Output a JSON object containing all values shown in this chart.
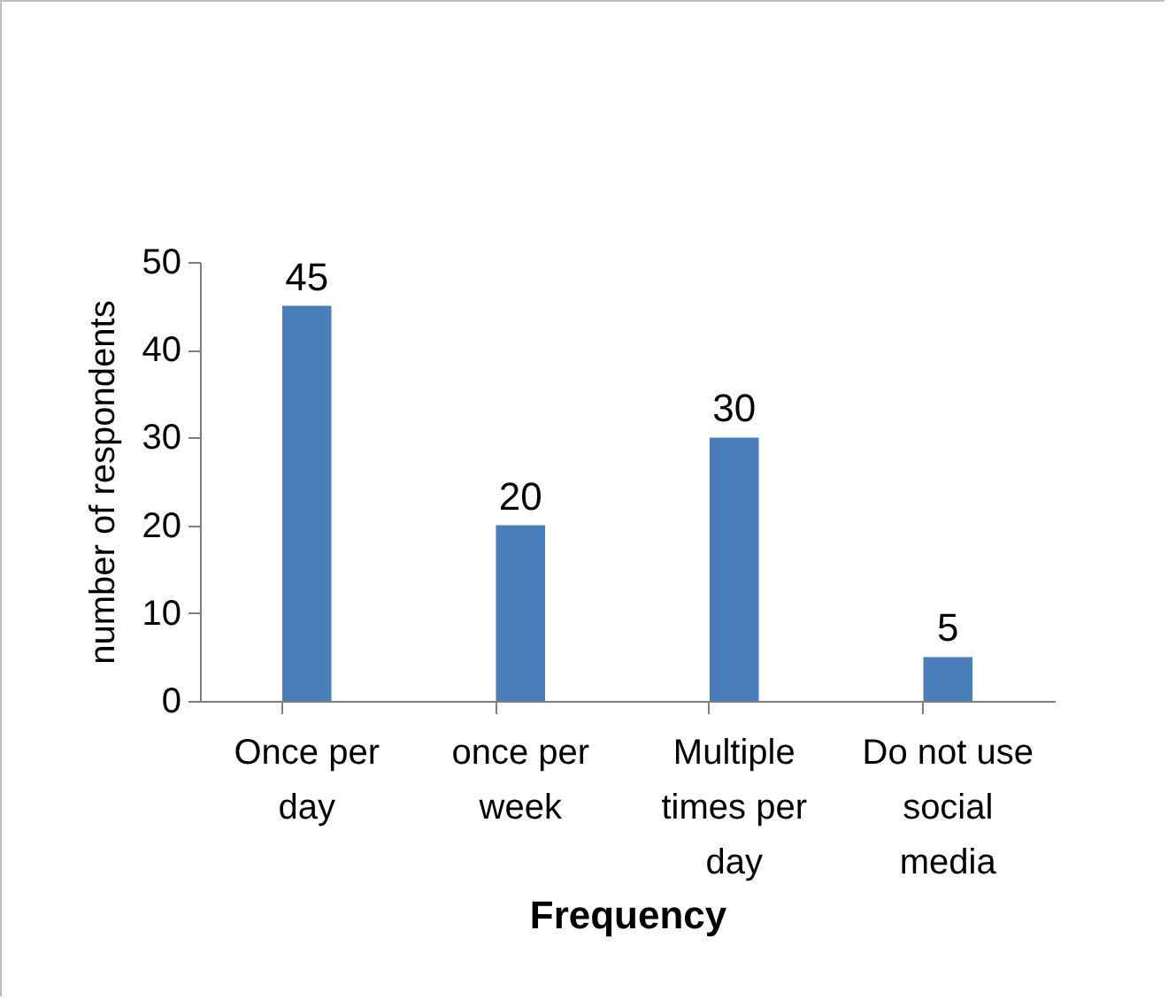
{
  "chart_data": {
    "type": "bar",
    "xlabel": "Frequency",
    "ylabel": "number of respondents",
    "categories": [
      "Once per day",
      "once per week",
      "Multiple times per day",
      "Do not use social media"
    ],
    "values": [
      45,
      20,
      30,
      5
    ],
    "color": "#4a7ebb",
    "ylim": [
      0,
      50
    ],
    "yticks": [
      0,
      10,
      20,
      30,
      40,
      50
    ],
    "grid": false,
    "data_labels": true
  }
}
